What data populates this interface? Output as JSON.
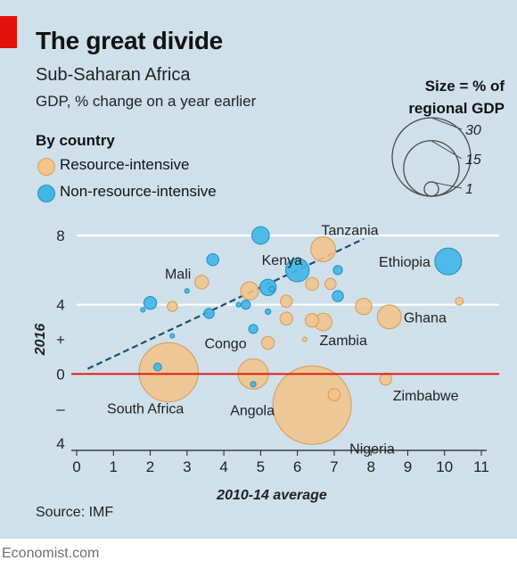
{
  "header": {
    "title": "The great divide",
    "subtitle": "Sub-Saharan Africa",
    "units": "GDP, % change on a year earlier"
  },
  "legend": {
    "heading": "By country",
    "items": [
      {
        "label": "Resource-intensive",
        "color": "#f2c38a"
      },
      {
        "label": "Non-resource-intensive",
        "color": "#43b6e6"
      }
    ]
  },
  "size_legend": {
    "title_line1": "Size = % of",
    "title_line2": "regional GDP",
    "values": [
      30,
      15,
      1
    ],
    "labels": [
      "30",
      "15",
      "1"
    ]
  },
  "footer": {
    "source": "Source: IMF",
    "brand": "Economist.com"
  },
  "colors": {
    "panel": "#cfe0ea",
    "resource": "#f2c38a",
    "nonresource": "#43b6e6",
    "zero_line": "#e3120b",
    "trend": "#1c4f6e"
  },
  "chart_data": {
    "type": "scatter",
    "title": "The great divide",
    "subtitle": "Sub-Saharan Africa",
    "xlabel": "2010-14 average",
    "ylabel": "2016",
    "xlim": [
      0,
      11
    ],
    "ylim": [
      -4,
      8
    ],
    "x_ticks": [
      0,
      1,
      2,
      3,
      4,
      5,
      6,
      7,
      8,
      9,
      10,
      11
    ],
    "x_tick_labels": [
      "0",
      "1",
      "2",
      "3",
      "4",
      "5",
      "6",
      "7",
      "8",
      "9",
      "10",
      "11"
    ],
    "y_ticks": [
      -4,
      -2,
      0,
      2,
      4,
      6,
      8
    ],
    "y_tick_labels": [
      "4",
      "–",
      "0",
      "+",
      "4",
      "",
      "8"
    ],
    "grid": "horizontal",
    "trend_line": {
      "x": [
        0.3,
        7.8
      ],
      "y": [
        0.3,
        7.8
      ]
    },
    "points": [
      {
        "country": "Nigeria",
        "label": "Nigeria",
        "group": "resource",
        "x": 6.4,
        "y": -1.8,
        "size": 30
      },
      {
        "country": "South Africa",
        "label": "South Africa",
        "group": "resource",
        "x": 2.5,
        "y": 0.1,
        "size": 17
      },
      {
        "country": "Angola",
        "label": "Angola",
        "group": "resource",
        "x": 4.8,
        "y": 0.0,
        "size": 4.5
      },
      {
        "country": "Tanzania",
        "label": "Tanzania",
        "group": "resource",
        "x": 6.7,
        "y": 7.2,
        "size": 3
      },
      {
        "country": "Ghana",
        "label": "Ghana",
        "group": "resource",
        "x": 8.5,
        "y": 3.3,
        "size": 2.8
      },
      {
        "country": "Zambia",
        "label": "Zambia",
        "group": "resource",
        "x": 6.7,
        "y": 3.0,
        "size": 1.5
      },
      {
        "country": "Congo",
        "label": "Congo",
        "group": "resource",
        "x": 5.2,
        "y": 1.8,
        "size": 0.8
      },
      {
        "country": "Zimbabwe",
        "label": "Zimbabwe",
        "group": "resource",
        "x": 8.4,
        "y": -0.3,
        "size": 0.7
      },
      {
        "country": "Mali",
        "label": "Mali",
        "group": "resource",
        "x": 3.4,
        "y": 5.3,
        "size": 0.9
      },
      {
        "country": "",
        "label": "",
        "group": "resource",
        "x": 4.7,
        "y": 4.8,
        "size": 1.6
      },
      {
        "country": "",
        "label": "",
        "group": "resource",
        "x": 2.6,
        "y": 3.9,
        "size": 0.5
      },
      {
        "country": "",
        "label": "",
        "group": "resource",
        "x": 5.7,
        "y": 4.2,
        "size": 0.7
      },
      {
        "country": "",
        "label": "",
        "group": "resource",
        "x": 5.7,
        "y": 3.2,
        "size": 0.8
      },
      {
        "country": "",
        "label": "",
        "group": "resource",
        "x": 6.4,
        "y": 5.2,
        "size": 0.8
      },
      {
        "country": "",
        "label": "",
        "group": "resource",
        "x": 6.9,
        "y": 5.2,
        "size": 0.6
      },
      {
        "country": "",
        "label": "",
        "group": "resource",
        "x": 6.4,
        "y": 3.1,
        "size": 0.9
      },
      {
        "country": "",
        "label": "",
        "group": "resource",
        "x": 7.8,
        "y": 3.9,
        "size": 1.3
      },
      {
        "country": "",
        "label": "",
        "group": "resource",
        "x": 10.4,
        "y": 4.2,
        "size": 0.3
      },
      {
        "country": "",
        "label": "",
        "group": "resource",
        "x": 7.0,
        "y": -1.2,
        "size": 0.7
      },
      {
        "country": "",
        "label": "",
        "group": "resource",
        "x": 6.2,
        "y": 2.0,
        "size": 0.1
      },
      {
        "country": "Ethiopia",
        "label": "Ethiopia",
        "group": "nonresource",
        "x": 10.1,
        "y": 6.5,
        "size": 3.5
      },
      {
        "country": "Kenya",
        "label": "Kenya",
        "group": "nonresource",
        "x": 6.0,
        "y": 6.0,
        "size": 2.7
      },
      {
        "country": "",
        "label": "",
        "group": "nonresource",
        "x": 5.0,
        "y": 8.0,
        "size": 1.5
      },
      {
        "country": "",
        "label": "",
        "group": "nonresource",
        "x": 5.2,
        "y": 5.0,
        "size": 1.3
      },
      {
        "country": "",
        "label": "",
        "group": "nonresource",
        "x": 3.7,
        "y": 6.6,
        "size": 0.7
      },
      {
        "country": "",
        "label": "",
        "group": "nonresource",
        "x": 2.0,
        "y": 4.1,
        "size": 0.8
      },
      {
        "country": "",
        "label": "",
        "group": "nonresource",
        "x": 3.6,
        "y": 3.5,
        "size": 0.5
      },
      {
        "country": "",
        "label": "",
        "group": "nonresource",
        "x": 7.1,
        "y": 6.0,
        "size": 0.4
      },
      {
        "country": "",
        "label": "",
        "group": "nonresource",
        "x": 7.1,
        "y": 4.5,
        "size": 0.6
      },
      {
        "country": "",
        "label": "",
        "group": "nonresource",
        "x": 4.8,
        "y": 2.6,
        "size": 0.4
      },
      {
        "country": "",
        "label": "",
        "group": "nonresource",
        "x": 5.2,
        "y": 3.6,
        "size": 0.15
      },
      {
        "country": "",
        "label": "",
        "group": "nonresource",
        "x": 5.3,
        "y": 4.9,
        "size": 0.15
      },
      {
        "country": "",
        "label": "",
        "group": "nonresource",
        "x": 4.6,
        "y": 4.0,
        "size": 0.4
      },
      {
        "country": "",
        "label": "",
        "group": "nonresource",
        "x": 2.2,
        "y": 0.4,
        "size": 0.3
      },
      {
        "country": "",
        "label": "",
        "group": "nonresource",
        "x": 4.8,
        "y": -0.6,
        "size": 0.15
      },
      {
        "country": "",
        "label": "",
        "group": "nonresource",
        "x": 1.8,
        "y": 3.7,
        "size": 0.1
      },
      {
        "country": "",
        "label": "",
        "group": "nonresource",
        "x": 3.0,
        "y": 4.8,
        "size": 0.1
      },
      {
        "country": "",
        "label": "",
        "group": "nonresource",
        "x": 2.6,
        "y": 2.2,
        "size": 0.1
      },
      {
        "country": "",
        "label": "",
        "group": "nonresource",
        "x": 4.4,
        "y": 4.0,
        "size": 0.1
      }
    ]
  }
}
